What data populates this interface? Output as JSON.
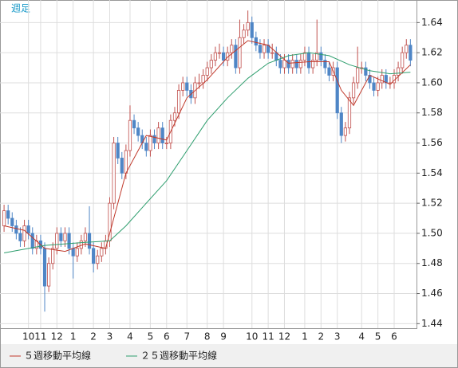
{
  "chart_data": {
    "type": "candlestick",
    "title": "週足",
    "categories": [
      null,
      null,
      null,
      null,
      null,
      null,
      "10",
      null,
      null,
      "11",
      null,
      null,
      null,
      "12",
      null,
      null,
      null,
      "1",
      null,
      null,
      null,
      null,
      "2",
      null,
      null,
      null,
      "3",
      null,
      null,
      null,
      null,
      "4",
      null,
      null,
      null,
      null,
      "5",
      null,
      null,
      null,
      "6",
      null,
      null,
      null,
      null,
      "7",
      null,
      null,
      null,
      null,
      "8",
      null,
      null,
      null,
      "9",
      null,
      null,
      null,
      null,
      null,
      null,
      "10",
      null,
      null,
      null,
      "11",
      null,
      null,
      null,
      "12",
      null,
      null,
      null,
      null,
      "1",
      null,
      null,
      null,
      "2",
      null,
      null,
      null,
      "3",
      null,
      null,
      null,
      null,
      null,
      "4",
      null,
      null,
      null,
      "5",
      null,
      null,
      null,
      "6",
      null,
      null,
      null,
      null
    ],
    "candles": [
      [
        1.505,
        1.519,
        1.501,
        1.515
      ],
      [
        1.515,
        1.519,
        1.506,
        1.51
      ],
      [
        1.51,
        1.514,
        1.501,
        1.505
      ],
      [
        1.505,
        1.509,
        1.496,
        1.5
      ],
      [
        1.5,
        1.504,
        1.491,
        1.495
      ],
      [
        1.495,
        1.509,
        1.491,
        1.505
      ],
      [
        1.505,
        1.509,
        1.496,
        1.5
      ],
      [
        1.5,
        1.504,
        1.486,
        1.49
      ],
      [
        1.49,
        1.499,
        1.486,
        1.495
      ],
      [
        1.495,
        1.499,
        1.486,
        1.49
      ],
      [
        1.49,
        1.494,
        1.448,
        1.465
      ],
      [
        1.465,
        1.484,
        1.461,
        1.48
      ],
      [
        1.48,
        1.494,
        1.476,
        1.49
      ],
      [
        1.49,
        1.504,
        1.486,
        1.5
      ],
      [
        1.5,
        1.504,
        1.491,
        1.495
      ],
      [
        1.495,
        1.504,
        1.491,
        1.5
      ],
      [
        1.5,
        1.504,
        1.486,
        1.49
      ],
      [
        1.49,
        1.494,
        1.47,
        1.485
      ],
      [
        1.485,
        1.494,
        1.481,
        1.49
      ],
      [
        1.49,
        1.499,
        1.486,
        1.495
      ],
      [
        1.495,
        1.504,
        1.491,
        1.5
      ],
      [
        1.5,
        1.518,
        1.486,
        1.49
      ],
      [
        1.49,
        1.494,
        1.474,
        1.48
      ],
      [
        1.48,
        1.489,
        1.476,
        1.485
      ],
      [
        1.485,
        1.494,
        1.481,
        1.49
      ],
      [
        1.49,
        1.499,
        1.486,
        1.495
      ],
      [
        1.495,
        1.524,
        1.491,
        1.52
      ],
      [
        1.52,
        1.564,
        1.516,
        1.56
      ],
      [
        1.56,
        1.564,
        1.546,
        1.55
      ],
      [
        1.55,
        1.554,
        1.536,
        1.54
      ],
      [
        1.54,
        1.559,
        1.536,
        1.555
      ],
      [
        1.555,
        1.585,
        1.551,
        1.575
      ],
      [
        1.575,
        1.579,
        1.566,
        1.57
      ],
      [
        1.57,
        1.574,
        1.561,
        1.565
      ],
      [
        1.565,
        1.569,
        1.556,
        1.56
      ],
      [
        1.56,
        1.564,
        1.551,
        1.555
      ],
      [
        1.555,
        1.569,
        1.551,
        1.565
      ],
      [
        1.565,
        1.569,
        1.556,
        1.56
      ],
      [
        1.56,
        1.574,
        1.556,
        1.57
      ],
      [
        1.57,
        1.574,
        1.556,
        1.56
      ],
      [
        1.56,
        1.564,
        1.556,
        1.56
      ],
      [
        1.56,
        1.579,
        1.556,
        1.575
      ],
      [
        1.575,
        1.584,
        1.571,
        1.58
      ],
      [
        1.58,
        1.599,
        1.576,
        1.595
      ],
      [
        1.595,
        1.604,
        1.591,
        1.6
      ],
      [
        1.6,
        1.604,
        1.591,
        1.595
      ],
      [
        1.595,
        1.599,
        1.586,
        1.59
      ],
      [
        1.59,
        1.604,
        1.586,
        1.6
      ],
      [
        1.6,
        1.606,
        1.596,
        1.6
      ],
      [
        1.6,
        1.609,
        1.596,
        1.605
      ],
      [
        1.605,
        1.614,
        1.601,
        1.61
      ],
      [
        1.61,
        1.619,
        1.606,
        1.615
      ],
      [
        1.615,
        1.624,
        1.611,
        1.62
      ],
      [
        1.62,
        1.626,
        1.616,
        1.62
      ],
      [
        1.62,
        1.624,
        1.611,
        1.615
      ],
      [
        1.615,
        1.624,
        1.611,
        1.62
      ],
      [
        1.62,
        1.629,
        1.616,
        1.625
      ],
      [
        1.625,
        1.629,
        1.606,
        1.61
      ],
      [
        1.61,
        1.642,
        1.606,
        1.63
      ],
      [
        1.63,
        1.639,
        1.626,
        1.635
      ],
      [
        1.635,
        1.648,
        1.631,
        1.64
      ],
      [
        1.64,
        1.644,
        1.626,
        1.63
      ],
      [
        1.63,
        1.634,
        1.621,
        1.625
      ],
      [
        1.625,
        1.629,
        1.616,
        1.62
      ],
      [
        1.62,
        1.629,
        1.616,
        1.625
      ],
      [
        1.625,
        1.629,
        1.616,
        1.62
      ],
      [
        1.62,
        1.626,
        1.616,
        1.62
      ],
      [
        1.62,
        1.624,
        1.611,
        1.615
      ],
      [
        1.615,
        1.619,
        1.606,
        1.61
      ],
      [
        1.61,
        1.619,
        1.606,
        1.615
      ],
      [
        1.615,
        1.619,
        1.606,
        1.61
      ],
      [
        1.61,
        1.619,
        1.606,
        1.615
      ],
      [
        1.615,
        1.619,
        1.606,
        1.61
      ],
      [
        1.61,
        1.619,
        1.606,
        1.615
      ],
      [
        1.615,
        1.624,
        1.611,
        1.62
      ],
      [
        1.62,
        1.624,
        1.606,
        1.61
      ],
      [
        1.61,
        1.619,
        1.606,
        1.615
      ],
      [
        1.615,
        1.642,
        1.611,
        1.62
      ],
      [
        1.62,
        1.624,
        1.611,
        1.615
      ],
      [
        1.615,
        1.619,
        1.606,
        1.61
      ],
      [
        1.61,
        1.614,
        1.601,
        1.605
      ],
      [
        1.605,
        1.614,
        1.601,
        1.61
      ],
      [
        1.61,
        1.614,
        1.576,
        1.58
      ],
      [
        1.58,
        1.584,
        1.56,
        1.565
      ],
      [
        1.565,
        1.574,
        1.561,
        1.57
      ],
      [
        1.57,
        1.594,
        1.566,
        1.59
      ],
      [
        1.59,
        1.604,
        1.586,
        1.6
      ],
      [
        1.6,
        1.624,
        1.596,
        1.61
      ],
      [
        1.61,
        1.614,
        1.606,
        1.61
      ],
      [
        1.61,
        1.614,
        1.601,
        1.605
      ],
      [
        1.605,
        1.609,
        1.596,
        1.6
      ],
      [
        1.6,
        1.604,
        1.591,
        1.595
      ],
      [
        1.595,
        1.604,
        1.591,
        1.6
      ],
      [
        1.6,
        1.609,
        1.596,
        1.605
      ],
      [
        1.605,
        1.609,
        1.596,
        1.6
      ],
      [
        1.6,
        1.604,
        1.596,
        1.6
      ],
      [
        1.6,
        1.609,
        1.596,
        1.605
      ],
      [
        1.605,
        1.614,
        1.601,
        1.61
      ],
      [
        1.61,
        1.624,
        1.606,
        1.62
      ],
      [
        1.62,
        1.629,
        1.616,
        1.625
      ],
      [
        1.625,
        1.629,
        1.611,
        1.615
      ]
    ],
    "up_color": "#c0504d",
    "down_color": "#4f86c6",
    "series": [
      {
        "name": "５週移動平均線",
        "color": "#c0392b",
        "x": [
          0,
          5,
          10,
          15,
          20,
          25,
          27,
          30,
          35,
          40,
          45,
          50,
          55,
          60,
          65,
          70,
          75,
          80,
          83,
          86,
          90,
          95,
          100
        ],
        "values": [
          1.505,
          1.502,
          1.49,
          1.488,
          1.493,
          1.49,
          1.51,
          1.54,
          1.565,
          1.562,
          1.59,
          1.602,
          1.617,
          1.628,
          1.625,
          1.613,
          1.614,
          1.614,
          1.595,
          1.585,
          1.605,
          1.599,
          1.612
        ]
      },
      {
        "name": "２５週移動平均線",
        "color": "#2e9e6e",
        "x": [
          0,
          10,
          20,
          26,
          30,
          35,
          40,
          45,
          50,
          55,
          60,
          65,
          70,
          75,
          80,
          85,
          90,
          95,
          100
        ],
        "values": [
          1.487,
          1.492,
          1.494,
          1.495,
          1.505,
          1.52,
          1.535,
          1.555,
          1.575,
          1.59,
          1.603,
          1.613,
          1.618,
          1.62,
          1.618,
          1.612,
          1.608,
          1.606,
          1.607
        ]
      }
    ],
    "xlim": [
      -1,
      101.5
    ],
    "ylim": [
      1.437,
      1.655
    ],
    "yticks": [
      1.44,
      1.46,
      1.48,
      {
        "value": 1.5,
        "label": "1.50"
      },
      1.52,
      1.54,
      1.56,
      1.58,
      {
        "value": 1.6,
        "label": "1.60"
      },
      1.62,
      1.64
    ],
    "grid": true
  }
}
